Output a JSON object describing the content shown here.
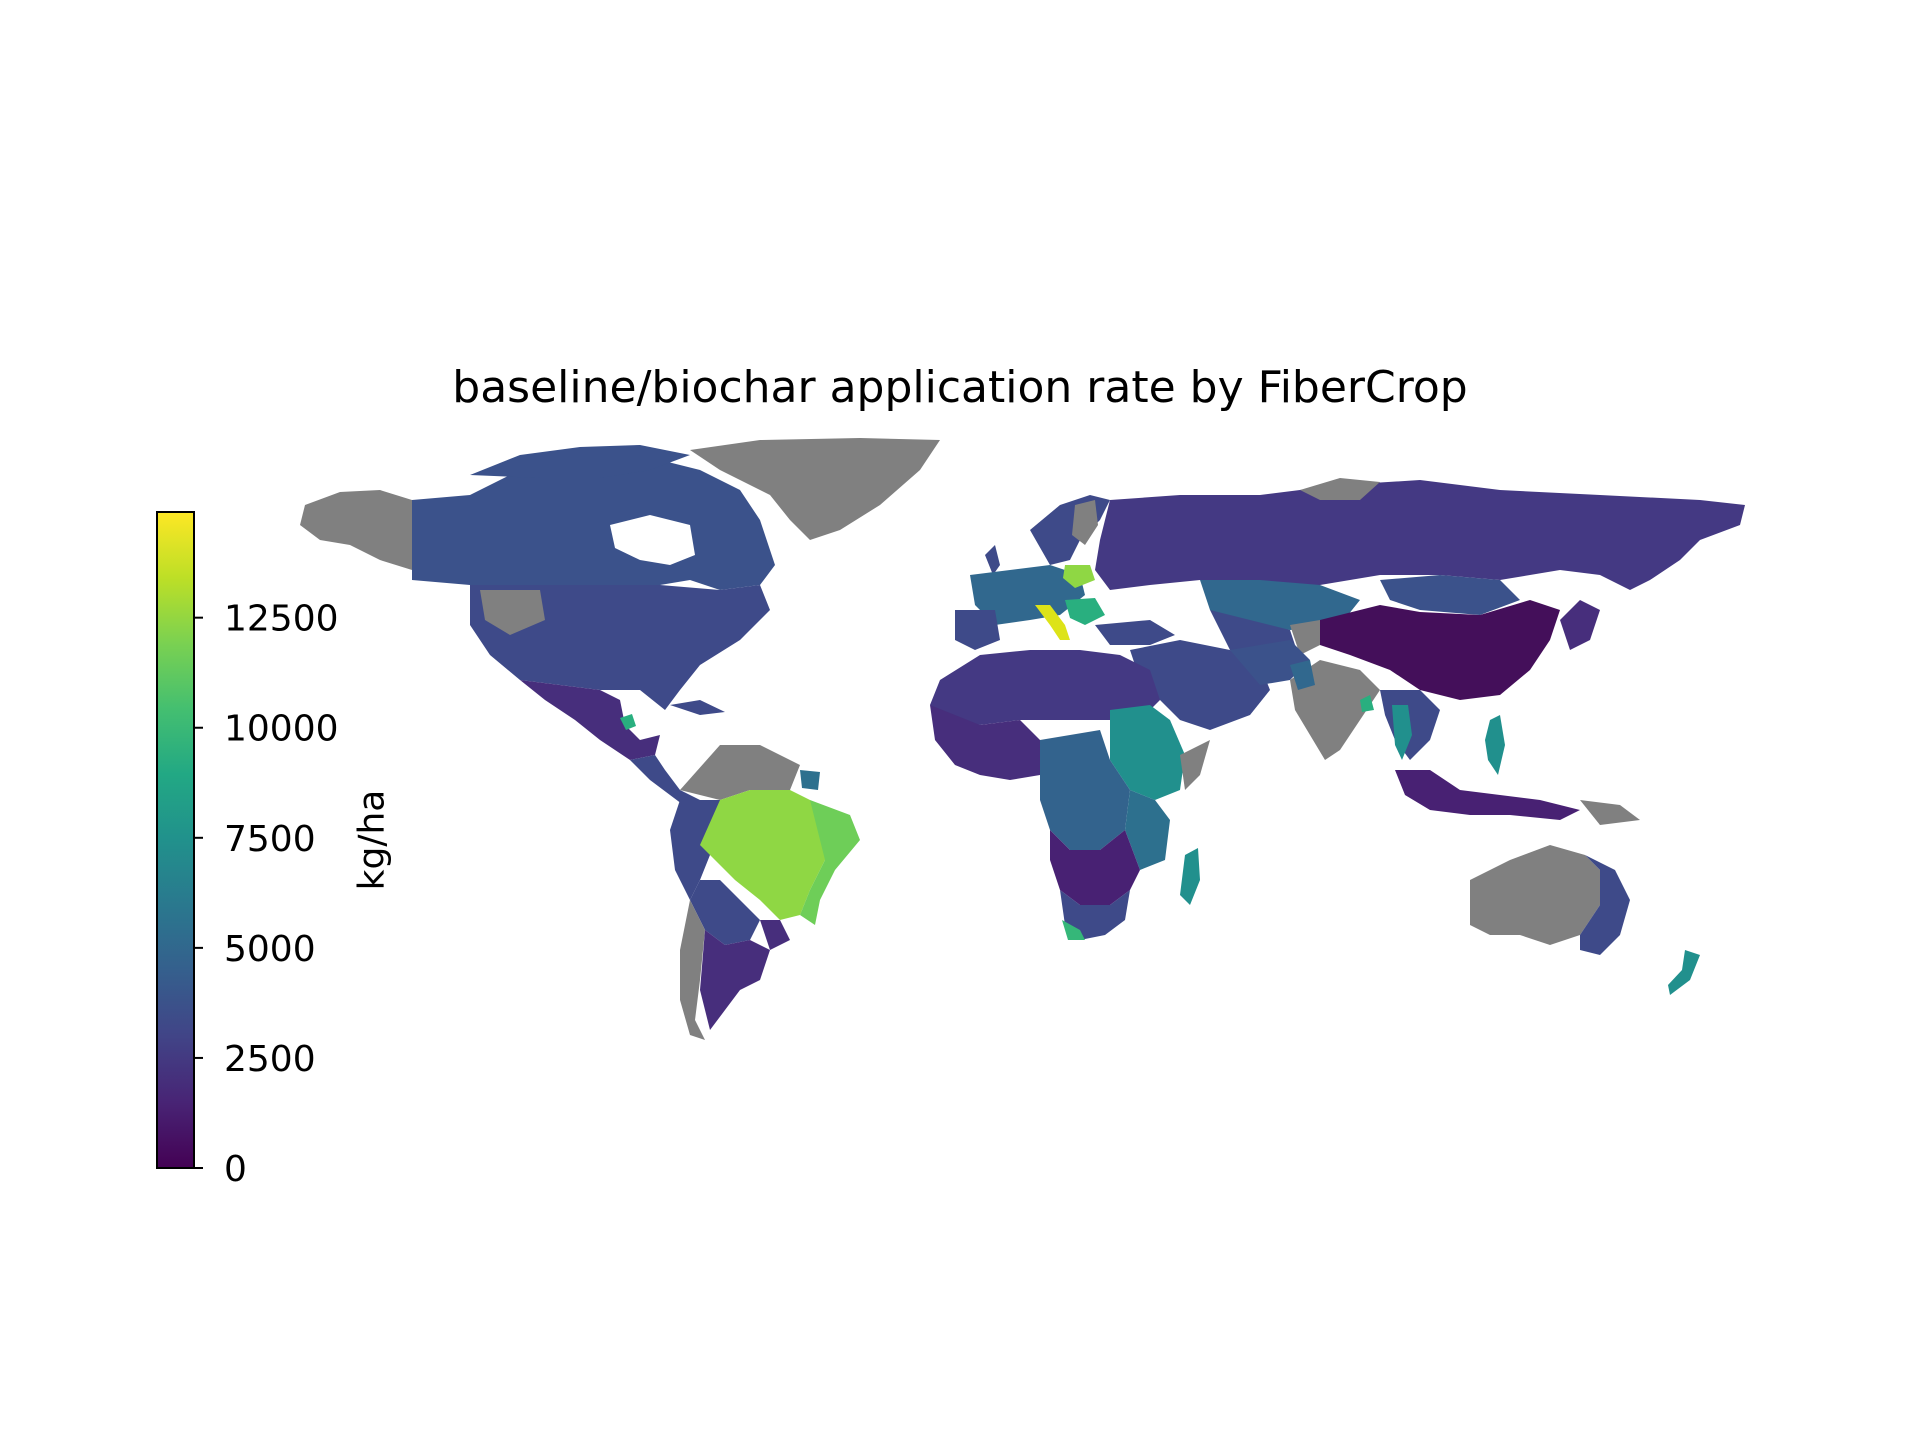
{
  "chart_data": {
    "type": "choropleth-map",
    "title": "baseline/biochar application rate by FiberCrop",
    "colorbar": {
      "label": "kg/ha",
      "colormap": "viridis",
      "range": [
        0,
        14900
      ],
      "ticks": [
        {
          "value": 0,
          "label": "0"
        },
        {
          "value": 2500,
          "label": "2500"
        },
        {
          "value": 5000,
          "label": "5000"
        },
        {
          "value": 7500,
          "label": "7500"
        },
        {
          "value": 10000,
          "label": "10000"
        },
        {
          "value": 12500,
          "label": "12500"
        }
      ],
      "placement": "left"
    },
    "no_data_color": "#808080",
    "regions": [
      {
        "region": "Brazil (central/west)",
        "value": 12200
      },
      {
        "region": "Brazil (east coast)",
        "value": 10500
      },
      {
        "region": "Italy",
        "value": 14500
      },
      {
        "region": "Poland",
        "value": 12300
      },
      {
        "region": "South Africa",
        "value": 10000
      },
      {
        "region": "Madagascar",
        "value": 8000
      },
      {
        "region": "New Zealand",
        "value": 8000
      },
      {
        "region": "Philippines",
        "value": 7800
      },
      {
        "region": "Thailand",
        "value": 9500
      },
      {
        "region": "Ethiopia/Sudan",
        "value": 7500
      },
      {
        "region": "Western Europe",
        "value": 4500
      },
      {
        "region": "Canada",
        "value": 3500
      },
      {
        "region": "United States",
        "value": 3400
      },
      {
        "region": "Russia",
        "value": 2200
      },
      {
        "region": "China",
        "value": 800
      },
      {
        "region": "Kazakhstan",
        "value": 4500
      },
      {
        "region": "Mexico",
        "value": 1500
      },
      {
        "region": "Argentina",
        "value": 1800
      },
      {
        "region": "Central Africa",
        "value": 4000
      },
      {
        "region": "West Africa",
        "value": 2200
      },
      {
        "region": "Indonesia",
        "value": 1200
      },
      {
        "region": "Eastern Australia",
        "value": 3000
      },
      {
        "region": "Middle East",
        "value": 3400
      }
    ],
    "grid": false
  }
}
